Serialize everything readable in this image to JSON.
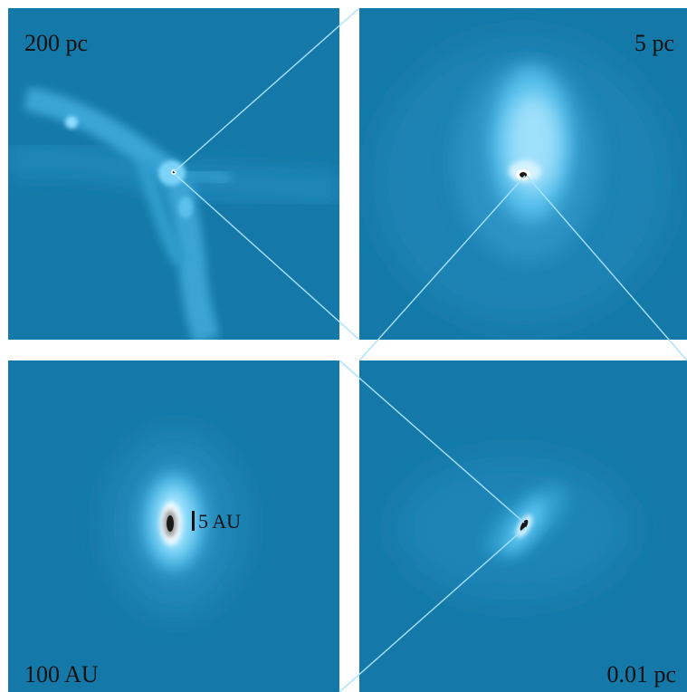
{
  "panels": {
    "top_left": {
      "scale_label": "200 pc"
    },
    "top_right": {
      "scale_label": "5 pc"
    },
    "bottom_left": {
      "scale_label": "100 AU",
      "inner_scale_label": "5 AU"
    },
    "bottom_right": {
      "scale_label": "0.01 pc"
    }
  },
  "colors": {
    "background": "#1479a8",
    "connector": "#a8e2ff",
    "low_density": "#2b94c6",
    "mid_density": "#5cc8f2",
    "high_density": "#d8f3ff",
    "core": "#1a1a1a"
  }
}
